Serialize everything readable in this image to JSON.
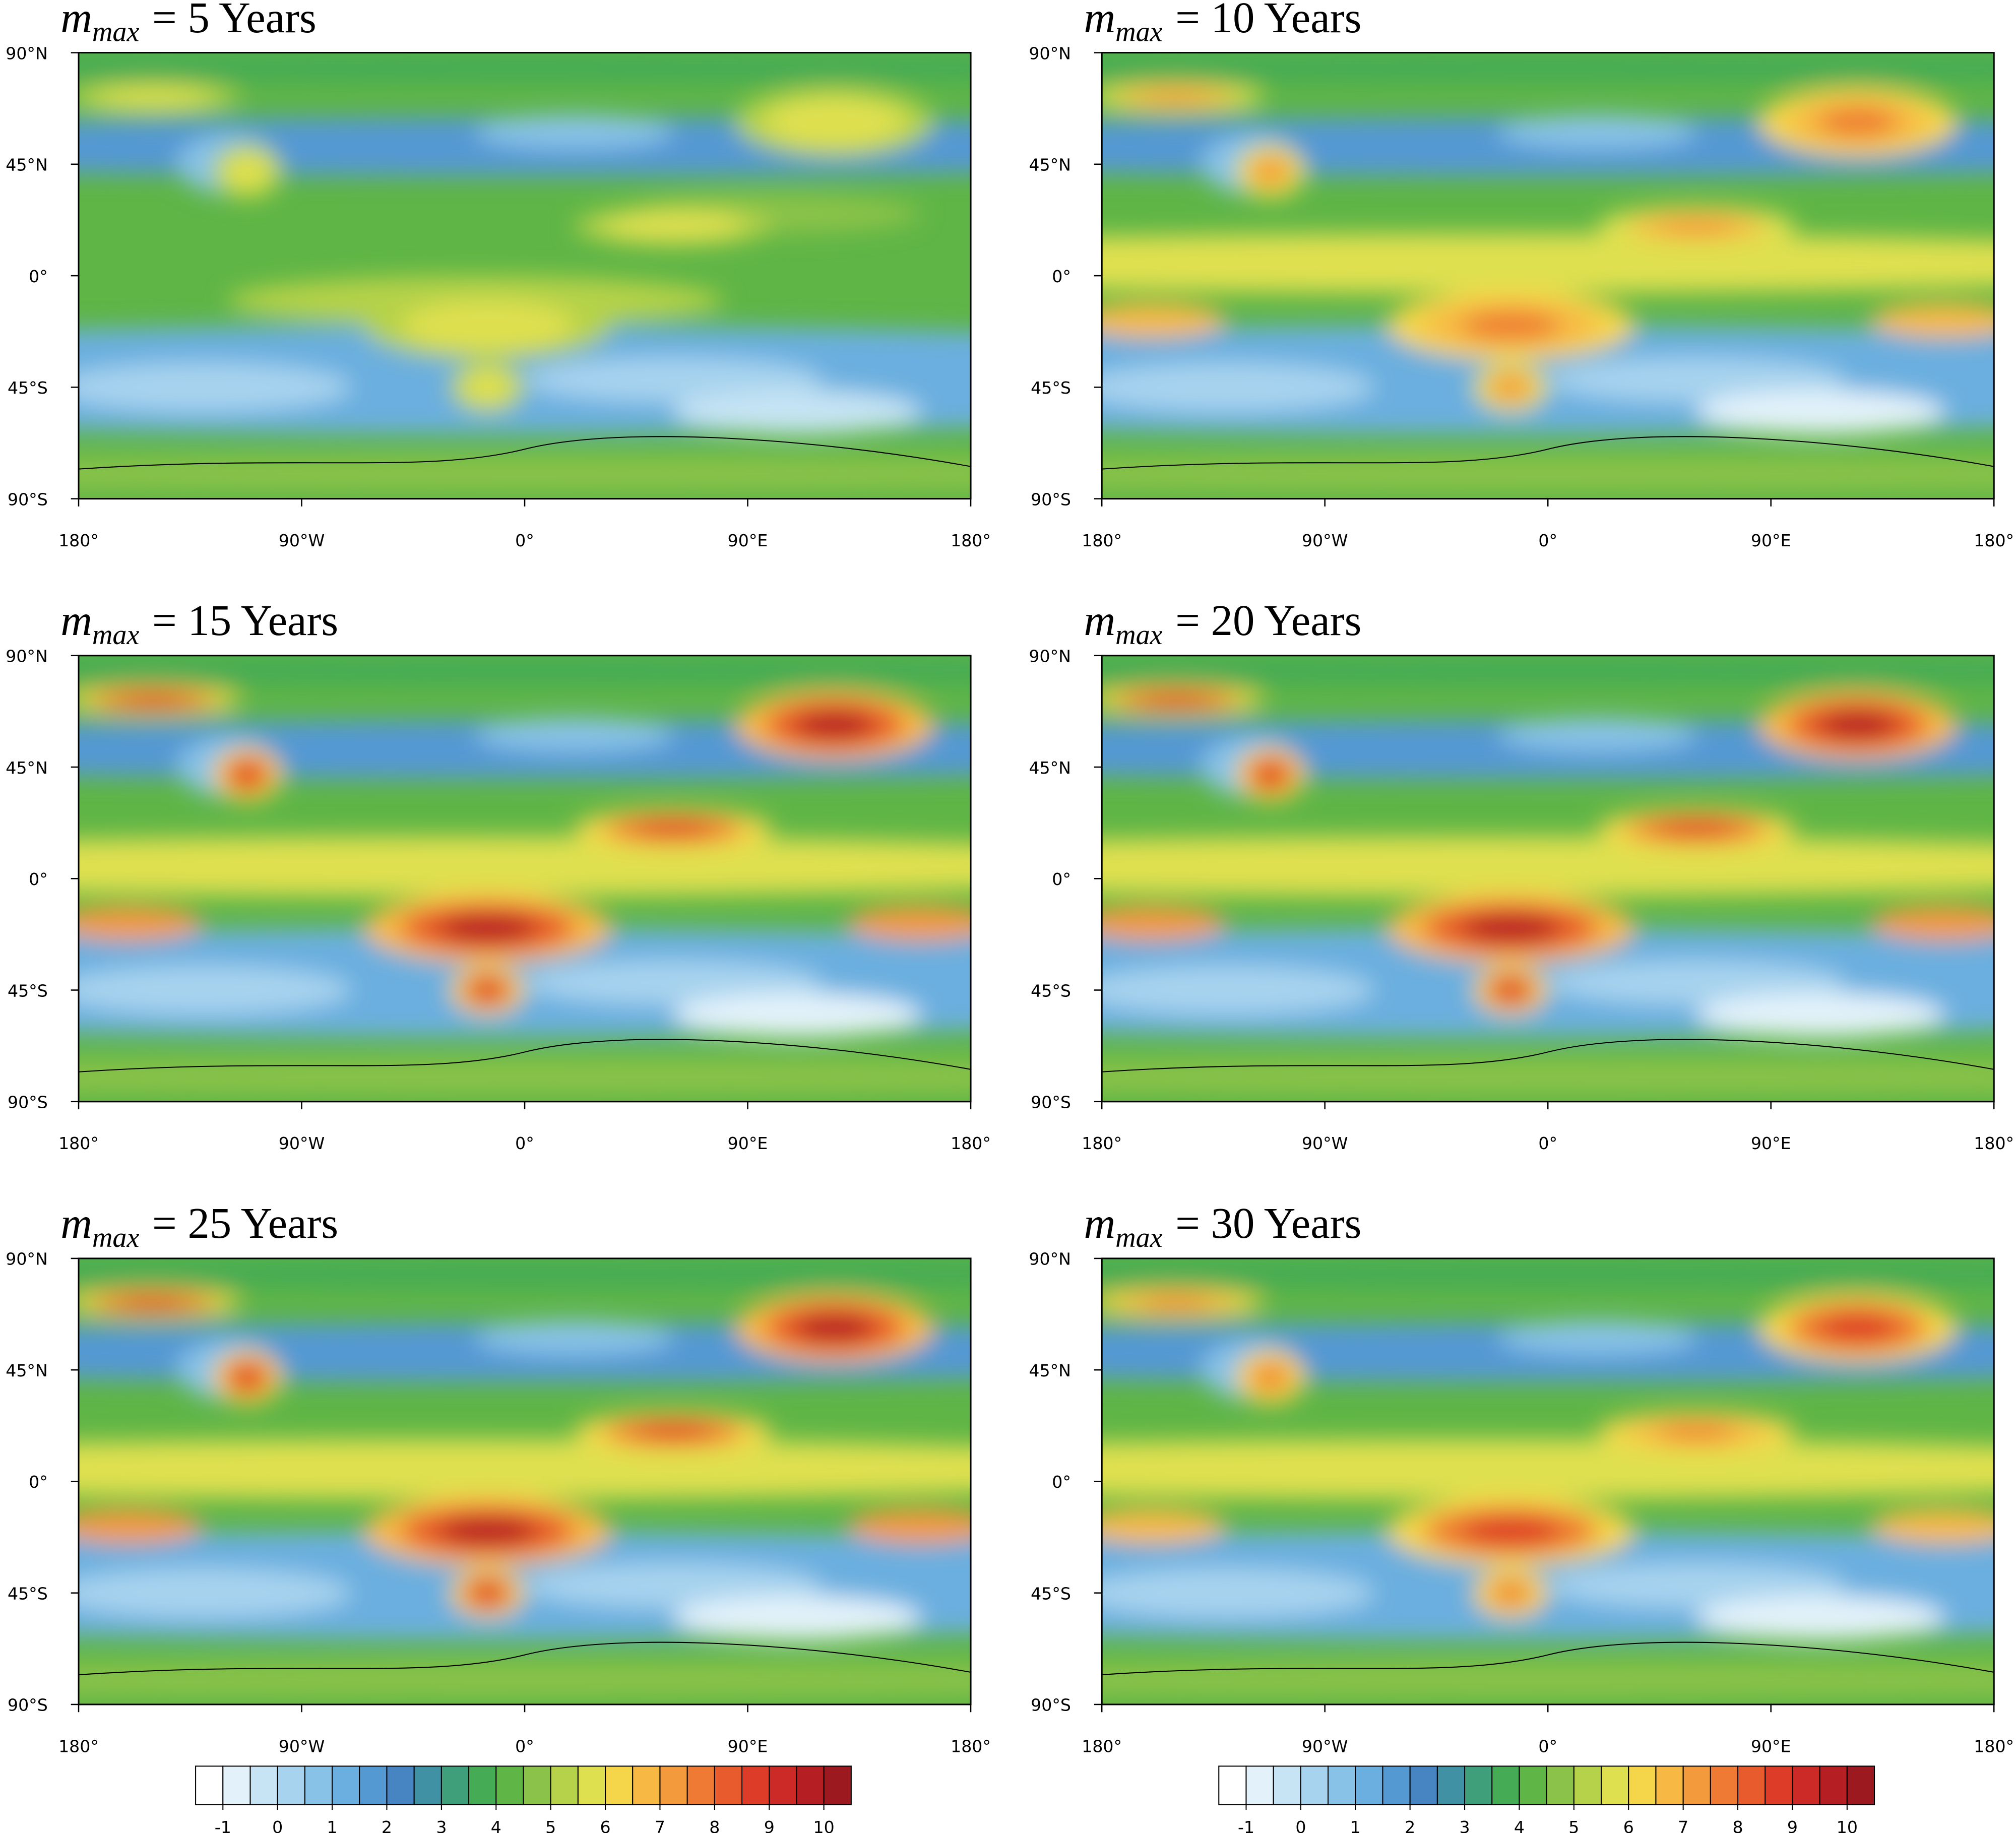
{
  "panels": [
    {
      "title": {
        "symbol": "m",
        "subscript": "max",
        "text": "= 5 Years"
      },
      "xlim": [
        -180,
        180
      ],
      "ylim": [
        -90,
        90
      ],
      "xticks": [
        {
          "value": -180,
          "label": "180°"
        },
        {
          "value": -90,
          "label": "90°W"
        },
        {
          "value": 0,
          "label": "0°"
        },
        {
          "value": 90,
          "label": "90°E"
        },
        {
          "value": 180,
          "label": "180°"
        }
      ],
      "yticks": [
        {
          "value": 90,
          "label": "90°N"
        },
        {
          "value": 45,
          "label": "45°N"
        },
        {
          "value": 0,
          "label": "0°"
        },
        {
          "value": -45,
          "label": "45°S"
        },
        {
          "value": -90,
          "label": "90°S"
        }
      ]
    },
    {
      "title": {
        "symbol": "m",
        "subscript": "max",
        "text": "= 10 Years"
      },
      "xlim": [
        -180,
        180
      ],
      "ylim": [
        -90,
        90
      ],
      "xticks": [
        {
          "value": -180,
          "label": "180°"
        },
        {
          "value": -90,
          "label": "90°W"
        },
        {
          "value": 0,
          "label": "0°"
        },
        {
          "value": 90,
          "label": "90°E"
        },
        {
          "value": 180,
          "label": "180°"
        }
      ],
      "yticks": [
        {
          "value": 90,
          "label": "90°N"
        },
        {
          "value": 45,
          "label": "45°N"
        },
        {
          "value": 0,
          "label": "0°"
        },
        {
          "value": -45,
          "label": "45°S"
        },
        {
          "value": -90,
          "label": "90°S"
        }
      ]
    },
    {
      "title": {
        "symbol": "m",
        "subscript": "max",
        "text": "= 15 Years"
      },
      "xlim": [
        -180,
        180
      ],
      "ylim": [
        -90,
        90
      ],
      "xticks": [
        {
          "value": -180,
          "label": "180°"
        },
        {
          "value": -90,
          "label": "90°W"
        },
        {
          "value": 0,
          "label": "0°"
        },
        {
          "value": 90,
          "label": "90°E"
        },
        {
          "value": 180,
          "label": "180°"
        }
      ],
      "yticks": [
        {
          "value": 90,
          "label": "90°N"
        },
        {
          "value": 45,
          "label": "45°N"
        },
        {
          "value": 0,
          "label": "0°"
        },
        {
          "value": -45,
          "label": "45°S"
        },
        {
          "value": -90,
          "label": "90°S"
        }
      ]
    },
    {
      "title": {
        "symbol": "m",
        "subscript": "max",
        "text": "= 20 Years"
      },
      "xlim": [
        -180,
        180
      ],
      "ylim": [
        -90,
        90
      ],
      "xticks": [
        {
          "value": -180,
          "label": "180°"
        },
        {
          "value": -90,
          "label": "90°W"
        },
        {
          "value": 0,
          "label": "0°"
        },
        {
          "value": 90,
          "label": "90°E"
        },
        {
          "value": 180,
          "label": "180°"
        }
      ],
      "yticks": [
        {
          "value": 90,
          "label": "90°N"
        },
        {
          "value": 45,
          "label": "45°N"
        },
        {
          "value": 0,
          "label": "0°"
        },
        {
          "value": -45,
          "label": "45°S"
        },
        {
          "value": -90,
          "label": "90°S"
        }
      ]
    },
    {
      "title": {
        "symbol": "m",
        "subscript": "max",
        "text": "= 25 Years"
      },
      "xlim": [
        -180,
        180
      ],
      "ylim": [
        -90,
        90
      ],
      "xticks": [
        {
          "value": -180,
          "label": "180°"
        },
        {
          "value": -90,
          "label": "90°W"
        },
        {
          "value": 0,
          "label": "0°"
        },
        {
          "value": 90,
          "label": "90°E"
        },
        {
          "value": 180,
          "label": "180°"
        }
      ],
      "yticks": [
        {
          "value": 90,
          "label": "90°N"
        },
        {
          "value": 45,
          "label": "45°N"
        },
        {
          "value": 0,
          "label": "0°"
        },
        {
          "value": -45,
          "label": "45°S"
        },
        {
          "value": -90,
          "label": "90°S"
        }
      ]
    },
    {
      "title": {
        "symbol": "m",
        "subscript": "max",
        "text": "= 30 Years"
      },
      "xlim": [
        -180,
        180
      ],
      "ylim": [
        -90,
        90
      ],
      "xticks": [
        {
          "value": -180,
          "label": "180°"
        },
        {
          "value": -90,
          "label": "90°W"
        },
        {
          "value": 0,
          "label": "0°"
        },
        {
          "value": 90,
          "label": "90°E"
        },
        {
          "value": 180,
          "label": "180°"
        }
      ],
      "yticks": [
        {
          "value": 90,
          "label": "90°N"
        },
        {
          "value": 45,
          "label": "45°N"
        },
        {
          "value": 0,
          "label": "0°"
        },
        {
          "value": -45,
          "label": "45°S"
        },
        {
          "value": -90,
          "label": "90°S"
        }
      ]
    }
  ],
  "colorbars": [
    {
      "xlim": [
        -1.5,
        10.5
      ],
      "ticks": [
        -1,
        0,
        1,
        2,
        3,
        4,
        5,
        6,
        7,
        8,
        9,
        10
      ],
      "colors": [
        "#ffffff",
        "#e3f2fa",
        "#c6e4f4",
        "#a7d3ee",
        "#88c2e7",
        "#6aafdf",
        "#5599d3",
        "#4785c2",
        "#3f91a3",
        "#3f9f7a",
        "#45ab55",
        "#5fb546",
        "#8bc34a",
        "#b5d24a",
        "#dfe050",
        "#f5d54a",
        "#f7b944",
        "#f39a3c",
        "#ee7a33",
        "#e85b2c",
        "#dd3c28",
        "#cc2a26",
        "#b51f24",
        "#9c1a1f"
      ]
    },
    {
      "xlim": [
        -1.5,
        10.5
      ],
      "ticks": [
        -1,
        0,
        1,
        2,
        3,
        4,
        5,
        6,
        7,
        8,
        9,
        10
      ],
      "colors": [
        "#ffffff",
        "#e3f2fa",
        "#c6e4f4",
        "#a7d3ee",
        "#88c2e7",
        "#6aafdf",
        "#5599d3",
        "#4785c2",
        "#3f91a3",
        "#3f9f7a",
        "#45ab55",
        "#5fb546",
        "#8bc34a",
        "#b5d24a",
        "#dfe050",
        "#f5d54a",
        "#f7b944",
        "#f39a3c",
        "#ee7a33",
        "#e85b2c",
        "#dd3c28",
        "#cc2a26",
        "#b51f24",
        "#9c1a1f"
      ]
    }
  ]
}
